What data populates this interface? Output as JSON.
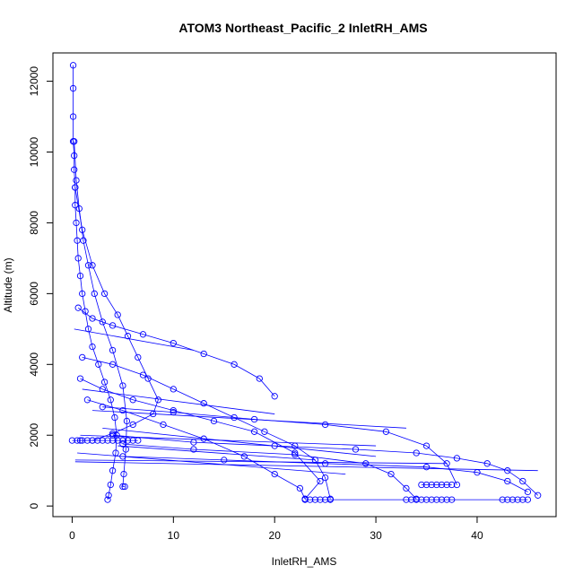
{
  "chart_data": {
    "type": "scatter",
    "title": "ATOM3 Northeast_Pacific_2 InletRH_AMS",
    "xlabel": "InletRH_AMS",
    "ylabel": "Altitude (m)",
    "xlim": [
      -1.9,
      47.8
    ],
    "ylim": [
      -300,
      12800
    ],
    "xticks": [
      0,
      10,
      20,
      30,
      40
    ],
    "yticks": [
      0,
      2000,
      4000,
      6000,
      8000,
      10000,
      12000
    ],
    "grid": false,
    "legend": "none",
    "marker": "open-circle",
    "color": "#0000ff",
    "series": [
      {
        "x": [
          0.1,
          0.1,
          0.1,
          0.1,
          0.2,
          0.2,
          0.3,
          0.3,
          0.4,
          0.5,
          0.6,
          0.8,
          1.0,
          1.3,
          1.6,
          2.0,
          2.6,
          3.2,
          3.8,
          4.2,
          4.4,
          4.3,
          4.0,
          3.8,
          3.6,
          3.5
        ],
        "y": [
          12450,
          11800,
          11000,
          10300,
          9900,
          9500,
          9000,
          8500,
          8000,
          7500,
          7000,
          6500,
          6000,
          5500,
          5000,
          4500,
          4000,
          3500,
          3000,
          2500,
          2000,
          1500,
          1000,
          600,
          300,
          180
        ]
      },
      {
        "x": [
          0.2,
          0.4,
          0.7,
          1.1,
          1.6,
          2.2,
          3.0,
          4.0,
          5.0,
          5.4,
          5.3,
          5.1,
          5.0,
          5.2
        ],
        "y": [
          10300,
          9200,
          8400,
          7500,
          6800,
          6000,
          5200,
          4400,
          3400,
          2400,
          1600,
          900,
          550,
          550
        ]
      },
      {
        "x": [
          0.3,
          1.0,
          2.0,
          3.2,
          4.5,
          5.5,
          6.5,
          7.5,
          8.5,
          8.0,
          6.0,
          4.0,
          2.0,
          0.8
        ],
        "y": [
          9000,
          7800,
          6800,
          6000,
          5400,
          4800,
          4200,
          3600,
          3000,
          2600,
          2300,
          2050,
          1850,
          1850
        ]
      },
      {
        "x": [
          0.6,
          2.0,
          4.0,
          7.0,
          10.0,
          13.0,
          16.0,
          18.5,
          20.0
        ],
        "y": [
          5600,
          5300,
          5100,
          4850,
          4600,
          4300,
          4000,
          3600,
          3100
        ]
      },
      {
        "x": [
          1.0,
          4.0,
          7.0,
          10.0,
          13.0,
          16.0,
          19.0,
          22.0,
          24.0,
          25.0,
          25.5
        ],
        "y": [
          4200,
          4000,
          3700,
          3300,
          2900,
          2500,
          2100,
          1700,
          1300,
          800,
          200
        ]
      },
      {
        "x": [
          0.8,
          3.0,
          6.0,
          10.0,
          14.0,
          18.0,
          22.0,
          24.5,
          23.0
        ],
        "y": [
          3600,
          3300,
          3000,
          2700,
          2400,
          2100,
          1500,
          700,
          200
        ]
      },
      {
        "x": [
          1.5,
          5.0,
          9.0,
          13.0,
          17.0,
          20.0,
          22.5,
          23.0
        ],
        "y": [
          3000,
          2700,
          2300,
          1900,
          1400,
          900,
          500,
          200
        ]
      },
      {
        "x": [
          3.0,
          10.0,
          18.0,
          25.0,
          31.0,
          35.0,
          37.0,
          38.0
        ],
        "y": [
          2800,
          2650,
          2450,
          2300,
          2100,
          1700,
          1200,
          600
        ]
      },
      {
        "x": [
          4.0,
          12.0,
          20.0,
          28.0,
          34.0,
          38.0,
          41.0,
          43.0,
          44.5,
          46.0
        ],
        "y": [
          2000,
          1800,
          1700,
          1600,
          1500,
          1350,
          1200,
          1000,
          700,
          300
        ]
      },
      {
        "x": [
          5.0,
          12.0,
          22.0,
          29.0,
          31.5,
          33.0,
          34.0
        ],
        "y": [
          1750,
          1600,
          1450,
          1200,
          900,
          500,
          200
        ]
      },
      {
        "x": [
          5.0,
          15.0,
          25.0,
          35.0,
          40.0,
          43.0,
          45.0
        ],
        "y": [
          1400,
          1300,
          1200,
          1100,
          950,
          700,
          400
        ]
      },
      {
        "x": [
          0.0,
          0.5,
          1.0,
          1.5,
          2.0,
          2.5,
          3.0,
          3.5,
          4.0,
          4.5,
          5.0,
          5.5,
          6.0,
          6.5
        ],
        "y": [
          1850,
          1850,
          1850,
          1850,
          1850,
          1850,
          1850,
          1850,
          1850,
          1850,
          1850,
          1850,
          1850,
          1850
        ]
      },
      {
        "x": [
          23.0,
          23.5,
          24.0,
          24.5,
          25.0,
          25.5,
          33.0,
          33.5,
          34.0,
          34.5,
          35.0,
          35.5,
          36.0,
          36.5,
          37.0,
          37.5,
          42.5,
          43.0,
          43.5,
          44.0,
          44.5,
          45.0
        ],
        "y": [
          180,
          180,
          180,
          180,
          180,
          180,
          180,
          180,
          180,
          180,
          180,
          180,
          180,
          180,
          180,
          180,
          180,
          180,
          180,
          180,
          180,
          180
        ]
      },
      {
        "x": [
          34.5,
          35.0,
          35.5,
          36.0,
          36.5,
          37.0,
          37.5
        ],
        "y": [
          600,
          600,
          600,
          600,
          600,
          600,
          600
        ]
      }
    ],
    "lines": [
      {
        "x": [
          0.3,
          46.0
        ],
        "y": [
          1250,
          1000
        ]
      },
      {
        "x": [
          0.3,
          37.0
        ],
        "y": [
          1300,
          1200
        ]
      },
      {
        "x": [
          0.5,
          27.0
        ],
        "y": [
          1500,
          900
        ]
      },
      {
        "x": [
          0.8,
          30.0
        ],
        "y": [
          2000,
          1700
        ]
      },
      {
        "x": [
          1.0,
          20.0
        ],
        "y": [
          3300,
          2600
        ]
      },
      {
        "x": [
          2.0,
          33.0
        ],
        "y": [
          2700,
          2200
        ]
      },
      {
        "x": [
          3.0,
          30.0
        ],
        "y": [
          2200,
          1400
        ]
      },
      {
        "x": [
          4.5,
          24.0
        ],
        "y": [
          1700,
          1300
        ]
      },
      {
        "x": [
          0.2,
          12.0
        ],
        "y": [
          5000,
          4400
        ]
      }
    ]
  }
}
